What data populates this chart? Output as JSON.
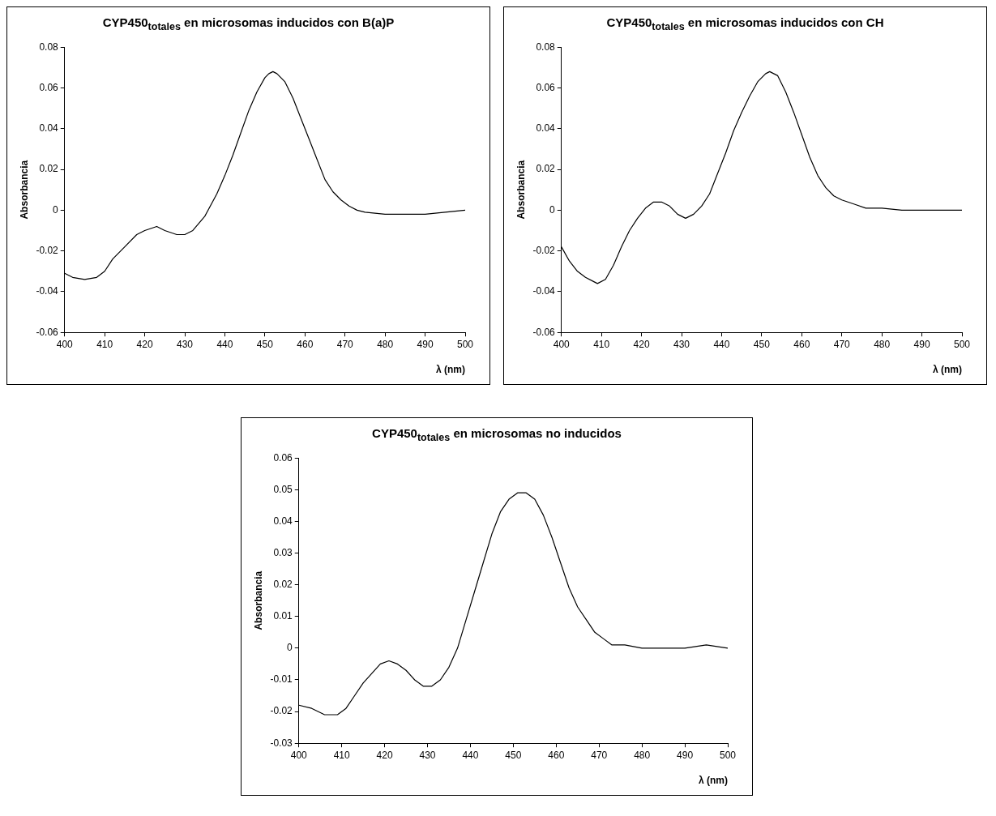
{
  "chart_data": [
    {
      "type": "line",
      "title": "CYP450$_{totales}$ en microsomas inducidos con B(a)P",
      "xlabel": "λ (nm)",
      "ylabel": "Absorbancia",
      "color": "#000000",
      "grid": false,
      "legend": false,
      "marker": "none",
      "line_style": "solid",
      "x": [
        400,
        402,
        405,
        408,
        410,
        412,
        415,
        418,
        420,
        423,
        425,
        428,
        430,
        432,
        435,
        438,
        440,
        442,
        444,
        446,
        448,
        450,
        451,
        452,
        453,
        455,
        457,
        459,
        461,
        463,
        465,
        467,
        469,
        471,
        473,
        475,
        480,
        485,
        490,
        495,
        500
      ],
      "values": [
        -0.031,
        -0.033,
        -0.034,
        -0.033,
        -0.03,
        -0.024,
        -0.018,
        -0.012,
        -0.01,
        -0.008,
        -0.01,
        -0.012,
        -0.012,
        -0.01,
        -0.003,
        0.008,
        0.017,
        0.027,
        0.038,
        0.049,
        0.058,
        0.065,
        0.067,
        0.068,
        0.067,
        0.063,
        0.055,
        0.045,
        0.035,
        0.025,
        0.015,
        0.009,
        0.005,
        0.002,
        0.0,
        -0.001,
        -0.002,
        -0.002,
        -0.002,
        -0.001,
        0.0
      ],
      "xlim": [
        400,
        500
      ],
      "xticks": [
        400,
        410,
        420,
        430,
        440,
        450,
        460,
        470,
        480,
        490,
        500
      ],
      "ylim": [
        -0.06,
        0.08
      ],
      "yticks": [
        -0.06,
        -0.04,
        -0.02,
        0,
        0.02,
        0.04,
        0.06,
        0.08
      ]
    },
    {
      "type": "line",
      "title": "CYP450$_{totales}$ en microsomas inducidos con CH",
      "xlabel": "λ (nm)",
      "ylabel": "Absorbancia",
      "color": "#000000",
      "grid": false,
      "legend": false,
      "marker": "none",
      "line_style": "solid",
      "x": [
        400,
        402,
        404,
        406,
        408,
        409,
        411,
        413,
        415,
        417,
        419,
        421,
        423,
        425,
        427,
        429,
        431,
        433,
        435,
        437,
        439,
        441,
        443,
        445,
        447,
        449,
        451,
        452,
        454,
        456,
        458,
        460,
        462,
        464,
        466,
        468,
        470,
        473,
        476,
        480,
        485,
        490,
        495,
        500
      ],
      "values": [
        -0.018,
        -0.025,
        -0.03,
        -0.033,
        -0.035,
        -0.036,
        -0.034,
        -0.027,
        -0.018,
        -0.01,
        -0.004,
        0.001,
        0.004,
        0.004,
        0.002,
        -0.002,
        -0.004,
        -0.002,
        0.002,
        0.008,
        0.018,
        0.028,
        0.039,
        0.048,
        0.056,
        0.063,
        0.067,
        0.068,
        0.066,
        0.058,
        0.048,
        0.037,
        0.026,
        0.017,
        0.011,
        0.007,
        0.005,
        0.003,
        0.001,
        0.001,
        0.0,
        0.0,
        0.0,
        0.0
      ],
      "xlim": [
        400,
        500
      ],
      "xticks": [
        400,
        410,
        420,
        430,
        440,
        450,
        460,
        470,
        480,
        490,
        500
      ],
      "ylim": [
        -0.06,
        0.08
      ],
      "yticks": [
        -0.06,
        -0.04,
        -0.02,
        0,
        0.02,
        0.04,
        0.06,
        0.08
      ]
    },
    {
      "type": "line",
      "title": "CYP450$_{totales}$ en microsomas no inducidos",
      "xlabel": "λ (nm)",
      "ylabel": "Absorbancia",
      "color": "#000000",
      "grid": false,
      "legend": false,
      "marker": "none",
      "line_style": "solid",
      "x": [
        400,
        403,
        406,
        409,
        411,
        413,
        415,
        417,
        419,
        421,
        423,
        425,
        427,
        429,
        431,
        433,
        435,
        437,
        439,
        441,
        443,
        445,
        447,
        449,
        451,
        453,
        455,
        457,
        459,
        461,
        463,
        465,
        467,
        469,
        471,
        473,
        476,
        480,
        485,
        490,
        495,
        500
      ],
      "values": [
        -0.018,
        -0.019,
        -0.021,
        -0.021,
        -0.019,
        -0.015,
        -0.011,
        -0.008,
        -0.005,
        -0.004,
        -0.005,
        -0.007,
        -0.01,
        -0.012,
        -0.012,
        -0.01,
        -0.006,
        0.0,
        0.009,
        0.018,
        0.027,
        0.036,
        0.043,
        0.047,
        0.049,
        0.049,
        0.047,
        0.042,
        0.035,
        0.027,
        0.019,
        0.013,
        0.009,
        0.005,
        0.003,
        0.001,
        0.001,
        0.0,
        0.0,
        0.0,
        0.001,
        0.0
      ],
      "xlim": [
        400,
        500
      ],
      "xticks": [
        400,
        410,
        420,
        430,
        440,
        450,
        460,
        470,
        480,
        490,
        500
      ],
      "ylim": [
        -0.03,
        0.06
      ],
      "yticks": [
        -0.03,
        -0.02,
        -0.01,
        0,
        0.01,
        0.02,
        0.03,
        0.04,
        0.05,
        0.06
      ]
    }
  ]
}
